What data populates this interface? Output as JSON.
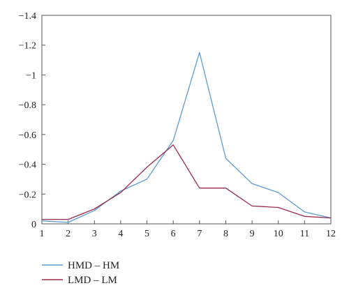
{
  "chart_data": {
    "type": "line",
    "title": "",
    "xlabel": "",
    "ylabel": "",
    "x": [
      1,
      2,
      3,
      4,
      5,
      6,
      7,
      8,
      9,
      10,
      11,
      12
    ],
    "xlim": [
      1,
      12
    ],
    "ylim": [
      0,
      -1.4
    ],
    "y_axis_inverted": true,
    "x_ticks": [
      "1",
      "2",
      "3",
      "4",
      "5",
      "6",
      "7",
      "8",
      "9",
      "10",
      "11",
      "12"
    ],
    "y_ticks": [
      "0",
      "−0.2",
      "−0.4",
      "−0.6",
      "−0.8",
      "−1",
      "−1.2",
      "−1.4"
    ],
    "y_tick_values": [
      0,
      -0.2,
      -0.4,
      -0.6,
      -0.8,
      -1.0,
      -1.2,
      -1.4
    ],
    "grid": false,
    "legend_position": "below",
    "series": [
      {
        "name": "HMD – HM",
        "color": "#5b9bd5",
        "values": [
          -0.02,
          -0.01,
          -0.09,
          -0.22,
          -0.3,
          -0.56,
          -1.15,
          -0.44,
          -0.27,
          -0.21,
          -0.08,
          -0.04
        ]
      },
      {
        "name": "LMD – LM",
        "color": "#9e2a4a",
        "values": [
          -0.03,
          -0.03,
          -0.1,
          -0.21,
          -0.38,
          -0.53,
          -0.24,
          -0.24,
          -0.12,
          -0.11,
          -0.05,
          -0.04
        ]
      }
    ]
  }
}
